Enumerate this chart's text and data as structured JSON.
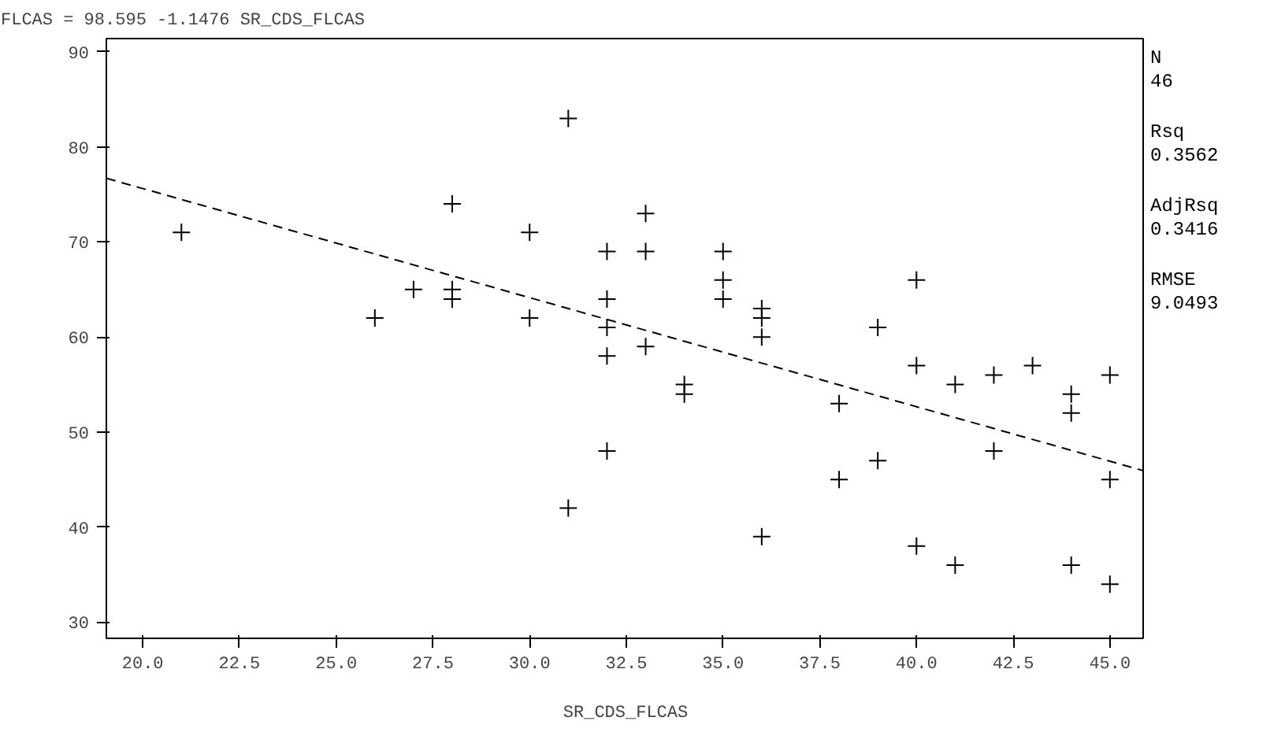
{
  "chart_data": {
    "type": "scatter",
    "title": "FLCAS = 98.595 -1.1476 SR_CDS_FLCAS",
    "xlabel": "SR_CDS_FLCAS",
    "xlim": [
      19.06,
      45.9
    ],
    "ylim": [
      28.3,
      91.4
    ],
    "xticks": [
      {
        "value": 20,
        "label": "20.0"
      },
      {
        "value": 22.5,
        "label": "22.5"
      },
      {
        "value": 25,
        "label": "25.0"
      },
      {
        "value": 27.5,
        "label": "27.5"
      },
      {
        "value": 30,
        "label": "30.0"
      },
      {
        "value": 32.5,
        "label": "32.5"
      },
      {
        "value": 35,
        "label": "35.0"
      },
      {
        "value": 37.5,
        "label": "37.5"
      },
      {
        "value": 40,
        "label": "40.0"
      },
      {
        "value": 42.5,
        "label": "42.5"
      },
      {
        "value": 45,
        "label": "45.0"
      }
    ],
    "yticks": [
      30,
      40,
      50,
      60,
      70,
      80,
      90
    ],
    "grid": false,
    "series": [
      {
        "color": "#000000",
        "marker": "cross",
        "x": [
          21,
          26,
          27,
          28,
          28,
          28,
          30,
          30,
          31,
          31,
          32,
          32,
          32,
          32,
          32,
          33,
          33,
          33,
          34,
          34,
          35,
          35,
          35,
          36,
          36,
          36,
          36,
          38,
          38,
          39,
          39,
          40,
          40,
          40,
          41,
          41,
          42,
          42,
          43,
          44,
          44,
          44,
          45,
          45,
          45
        ],
        "values": [
          71,
          62,
          65,
          74,
          65,
          64,
          71,
          62,
          83,
          42,
          69,
          64,
          61,
          58,
          48,
          73,
          69,
          59,
          55,
          54,
          69,
          66,
          64,
          63,
          62,
          60,
          39,
          53,
          45,
          61,
          47,
          66,
          57,
          38,
          55,
          36,
          56,
          48,
          57,
          54,
          52,
          36,
          56,
          45,
          34
        ]
      },
      {
        "type": "line",
        "color": "#000000",
        "line_style": "dashed",
        "marker": "none",
        "x": [
          19.06,
          45.9
        ],
        "values": [
          76.7,
          45.9
        ]
      }
    ],
    "annotations": [
      "N",
      "46",
      "Rsq",
      "0.3562",
      "AdjRsq",
      "0.3416",
      "RMSE",
      "9.0493"
    ]
  }
}
